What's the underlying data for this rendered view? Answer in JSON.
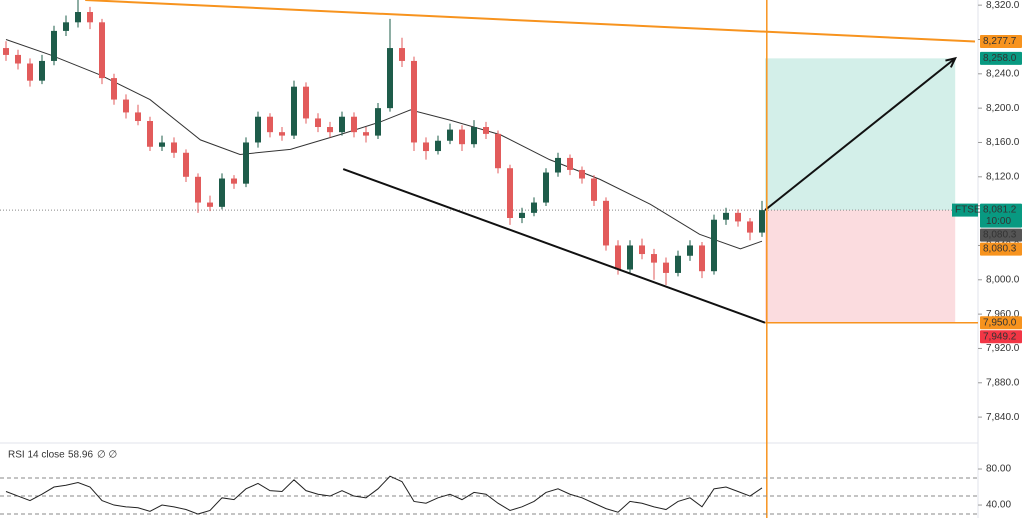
{
  "chart_data": {
    "type": "candlestick",
    "symbol": "FTSE",
    "time": "10:00",
    "up_color": "#1e5c4a",
    "down_color": "#e25b5b",
    "ylim": [
      7811,
      8326
    ],
    "yticks": [
      {
        "value": 8320,
        "label": "8,320.0"
      },
      {
        "value": 8280,
        "label": "8,280.0"
      },
      {
        "value": 8240,
        "label": "8,240.0"
      },
      {
        "value": 8200,
        "label": "8,200.0"
      },
      {
        "value": 8160,
        "label": "8,160.0"
      },
      {
        "value": 8120,
        "label": "8,120.0"
      },
      {
        "value": 8040,
        "label": "8,040.0"
      },
      {
        "value": 8000,
        "label": "8,000.0"
      },
      {
        "value": 7960,
        "label": "7,960.0"
      },
      {
        "value": 7920,
        "label": "7,920.0"
      },
      {
        "value": 7880,
        "label": "7,880.0"
      },
      {
        "value": 7840,
        "label": "7,840.0"
      }
    ],
    "candles": [
      [
        8270,
        8278,
        8255,
        8262
      ],
      [
        8262,
        8268,
        8245,
        8252
      ],
      [
        8252,
        8258,
        8225,
        8232
      ],
      [
        8232,
        8262,
        8228,
        8255
      ],
      [
        8255,
        8296,
        8250,
        8290
      ],
      [
        8290,
        8308,
        8284,
        8300
      ],
      [
        8300,
        8326,
        8294,
        8312
      ],
      [
        8312,
        8318,
        8292,
        8300
      ],
      [
        8300,
        8304,
        8228,
        8235
      ],
      [
        8235,
        8240,
        8204,
        8210
      ],
      [
        8210,
        8216,
        8188,
        8195
      ],
      [
        8195,
        8204,
        8180,
        8185
      ],
      [
        8185,
        8190,
        8150,
        8155
      ],
      [
        8155,
        8168,
        8150,
        8160
      ],
      [
        8160,
        8166,
        8142,
        8148
      ],
      [
        8148,
        8152,
        8114,
        8120
      ],
      [
        8120,
        8124,
        8078,
        8090
      ],
      [
        8090,
        8098,
        8080,
        8085
      ],
      [
        8085,
        8124,
        8082,
        8118
      ],
      [
        8118,
        8122,
        8106,
        8112
      ],
      [
        8112,
        8166,
        8108,
        8160
      ],
      [
        8160,
        8196,
        8154,
        8190
      ],
      [
        8190,
        8194,
        8166,
        8172
      ],
      [
        8172,
        8178,
        8162,
        8168
      ],
      [
        8168,
        8232,
        8164,
        8225
      ],
      [
        8225,
        8230,
        8182,
        8188
      ],
      [
        8188,
        8194,
        8172,
        8178
      ],
      [
        8178,
        8184,
        8166,
        8172
      ],
      [
        8172,
        8196,
        8168,
        8190
      ],
      [
        8190,
        8195,
        8166,
        8172
      ],
      [
        8172,
        8178,
        8160,
        8168
      ],
      [
        8168,
        8206,
        8164,
        8200
      ],
      [
        8200,
        8304,
        8196,
        8270
      ],
      [
        8270,
        8282,
        8248,
        8255
      ],
      [
        8255,
        8260,
        8150,
        8160
      ],
      [
        8160,
        8166,
        8140,
        8150
      ],
      [
        8150,
        8168,
        8146,
        8162
      ],
      [
        8162,
        8182,
        8158,
        8175
      ],
      [
        8175,
        8180,
        8150,
        8158
      ],
      [
        8158,
        8186,
        8154,
        8178
      ],
      [
        8178,
        8184,
        8164,
        8170
      ],
      [
        8170,
        8174,
        8124,
        8130
      ],
      [
        8130,
        8134,
        8064,
        8072
      ],
      [
        8072,
        8084,
        8066,
        8078
      ],
      [
        8078,
        8096,
        8074,
        8090
      ],
      [
        8090,
        8130,
        8086,
        8125
      ],
      [
        8125,
        8148,
        8120,
        8142
      ],
      [
        8142,
        8146,
        8122,
        8128
      ],
      [
        8128,
        8132,
        8112,
        8118
      ],
      [
        8118,
        8122,
        8086,
        8092
      ],
      [
        8092,
        8096,
        8034,
        8040
      ],
      [
        8040,
        8046,
        8006,
        8012
      ],
      [
        8012,
        8046,
        8008,
        8040
      ],
      [
        8040,
        8048,
        8024,
        8030
      ],
      [
        8030,
        8036,
        8000,
        8020
      ],
      [
        8020,
        8026,
        7994,
        8008
      ],
      [
        8008,
        8034,
        8004,
        8028
      ],
      [
        8028,
        8046,
        8022,
        8040
      ],
      [
        8040,
        8044,
        8002,
        8010
      ],
      [
        8010,
        8076,
        8006,
        8070
      ],
      [
        8070,
        8084,
        8064,
        8078
      ],
      [
        8078,
        8082,
        8062,
        8068
      ],
      [
        8068,
        8072,
        8046,
        8055
      ],
      [
        8055,
        8092,
        8050,
        8081.2
      ]
    ],
    "ma": {
      "color": "#333333",
      "x": [
        0,
        3.7,
        7.8,
        12,
        16.2,
        19.5,
        23.7,
        27.8,
        31.2,
        33.7,
        37,
        41.2,
        45.3,
        49.5,
        53.7,
        57.8,
        61.2,
        63
      ],
      "values": [
        8280,
        8262,
        8239,
        8210,
        8163,
        8146,
        8152,
        8169,
        8184,
        8198,
        8186,
        8169,
        8140,
        8117,
        8088,
        8053,
        8036,
        8045
      ]
    },
    "trend_lines": [
      {
        "color": "#f7931e",
        "points": [
          [
            6.6,
            8326
          ],
          [
            80.75,
            8277.7
          ]
        ]
      },
      {
        "color": "#111111",
        "points": [
          [
            28.1,
            8129
          ],
          [
            63.25,
            7950
          ]
        ]
      }
    ],
    "cursor_x": 63.4,
    "cursor_color": "#f7931e",
    "position": {
      "start": 63.25,
      "end": 79.1,
      "entry": 8081.2,
      "target": 8258,
      "stop": 7950,
      "profit_color": "#d3efe9",
      "loss_color": "#fbdcdf"
    },
    "price_labels": [
      {
        "value": 8277.7,
        "label": "8,277.7",
        "color": "#f7931e"
      },
      {
        "value": 8258,
        "label": "8,258.0",
        "color": "#089981"
      },
      {
        "value": 8081.2,
        "label": "8,081.2",
        "color": "#089981"
      },
      {
        "value": 8080.3,
        "label": "8,080.3",
        "color": "#555555"
      },
      {
        "value": 8080.3,
        "label": "8,080.3",
        "color": "#f7931e"
      },
      {
        "value": 7950,
        "label": "7,950.0",
        "color": "#f7931e"
      },
      {
        "value": 7949.2,
        "label": "7,949.2",
        "color": "#f23645"
      }
    ],
    "rsi": {
      "title": "RSI 14 close",
      "last": 58.96,
      "extra": "∅ ∅",
      "color": "#222222",
      "ylim": [
        25.6,
        108.9
      ],
      "yticks": [
        {
          "value": 80,
          "label": "80.00"
        },
        {
          "value": 40,
          "label": "40.00"
        }
      ],
      "levels": [
        70,
        50,
        30
      ],
      "values": [
        55,
        50,
        45,
        52,
        60,
        62,
        65,
        60,
        45,
        40,
        38,
        37,
        33,
        40,
        38,
        35,
        30,
        34,
        48,
        46,
        58,
        64,
        56,
        55,
        68,
        56,
        52,
        50,
        56,
        50,
        48,
        58,
        72,
        66,
        44,
        42,
        48,
        52,
        46,
        54,
        52,
        42,
        34,
        38,
        44,
        54,
        58,
        52,
        48,
        42,
        36,
        32,
        44,
        42,
        38,
        35,
        44,
        48,
        38,
        58,
        60,
        55,
        50,
        58.96
      ]
    }
  }
}
